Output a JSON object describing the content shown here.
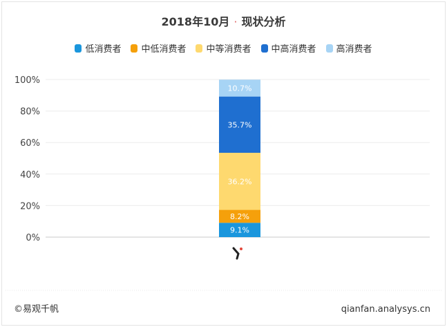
{
  "chart_data": {
    "type": "bar",
    "title": "2018年10月",
    "title_suffix": "现状分析",
    "stacked": true,
    "categories": [
      ""
    ],
    "series": [
      {
        "name": "低消费者",
        "values": [
          9.1
        ],
        "color": "#1a96dd",
        "label": "9.1%"
      },
      {
        "name": "中低消费者",
        "values": [
          8.2
        ],
        "color": "#f5a00b",
        "label": "8.2%"
      },
      {
        "name": "中等消费者",
        "values": [
          36.2
        ],
        "color": "#fed96f",
        "label": "36.2%"
      },
      {
        "name": "中高消费者",
        "values": [
          35.7
        ],
        "color": "#1f6fd0",
        "label": "35.7%"
      },
      {
        "name": "高消费者",
        "values": [
          10.7
        ],
        "color": "#a7d4f5",
        "label": "10.7%"
      }
    ],
    "ylim": [
      0,
      100
    ],
    "yticks": [
      "0%",
      "20%",
      "40%",
      "60%",
      "80%",
      "100%"
    ],
    "grid": true,
    "legend_position": "top"
  },
  "footer": {
    "source": "©易观千帆",
    "site": "qianfan.analysys.cn"
  }
}
